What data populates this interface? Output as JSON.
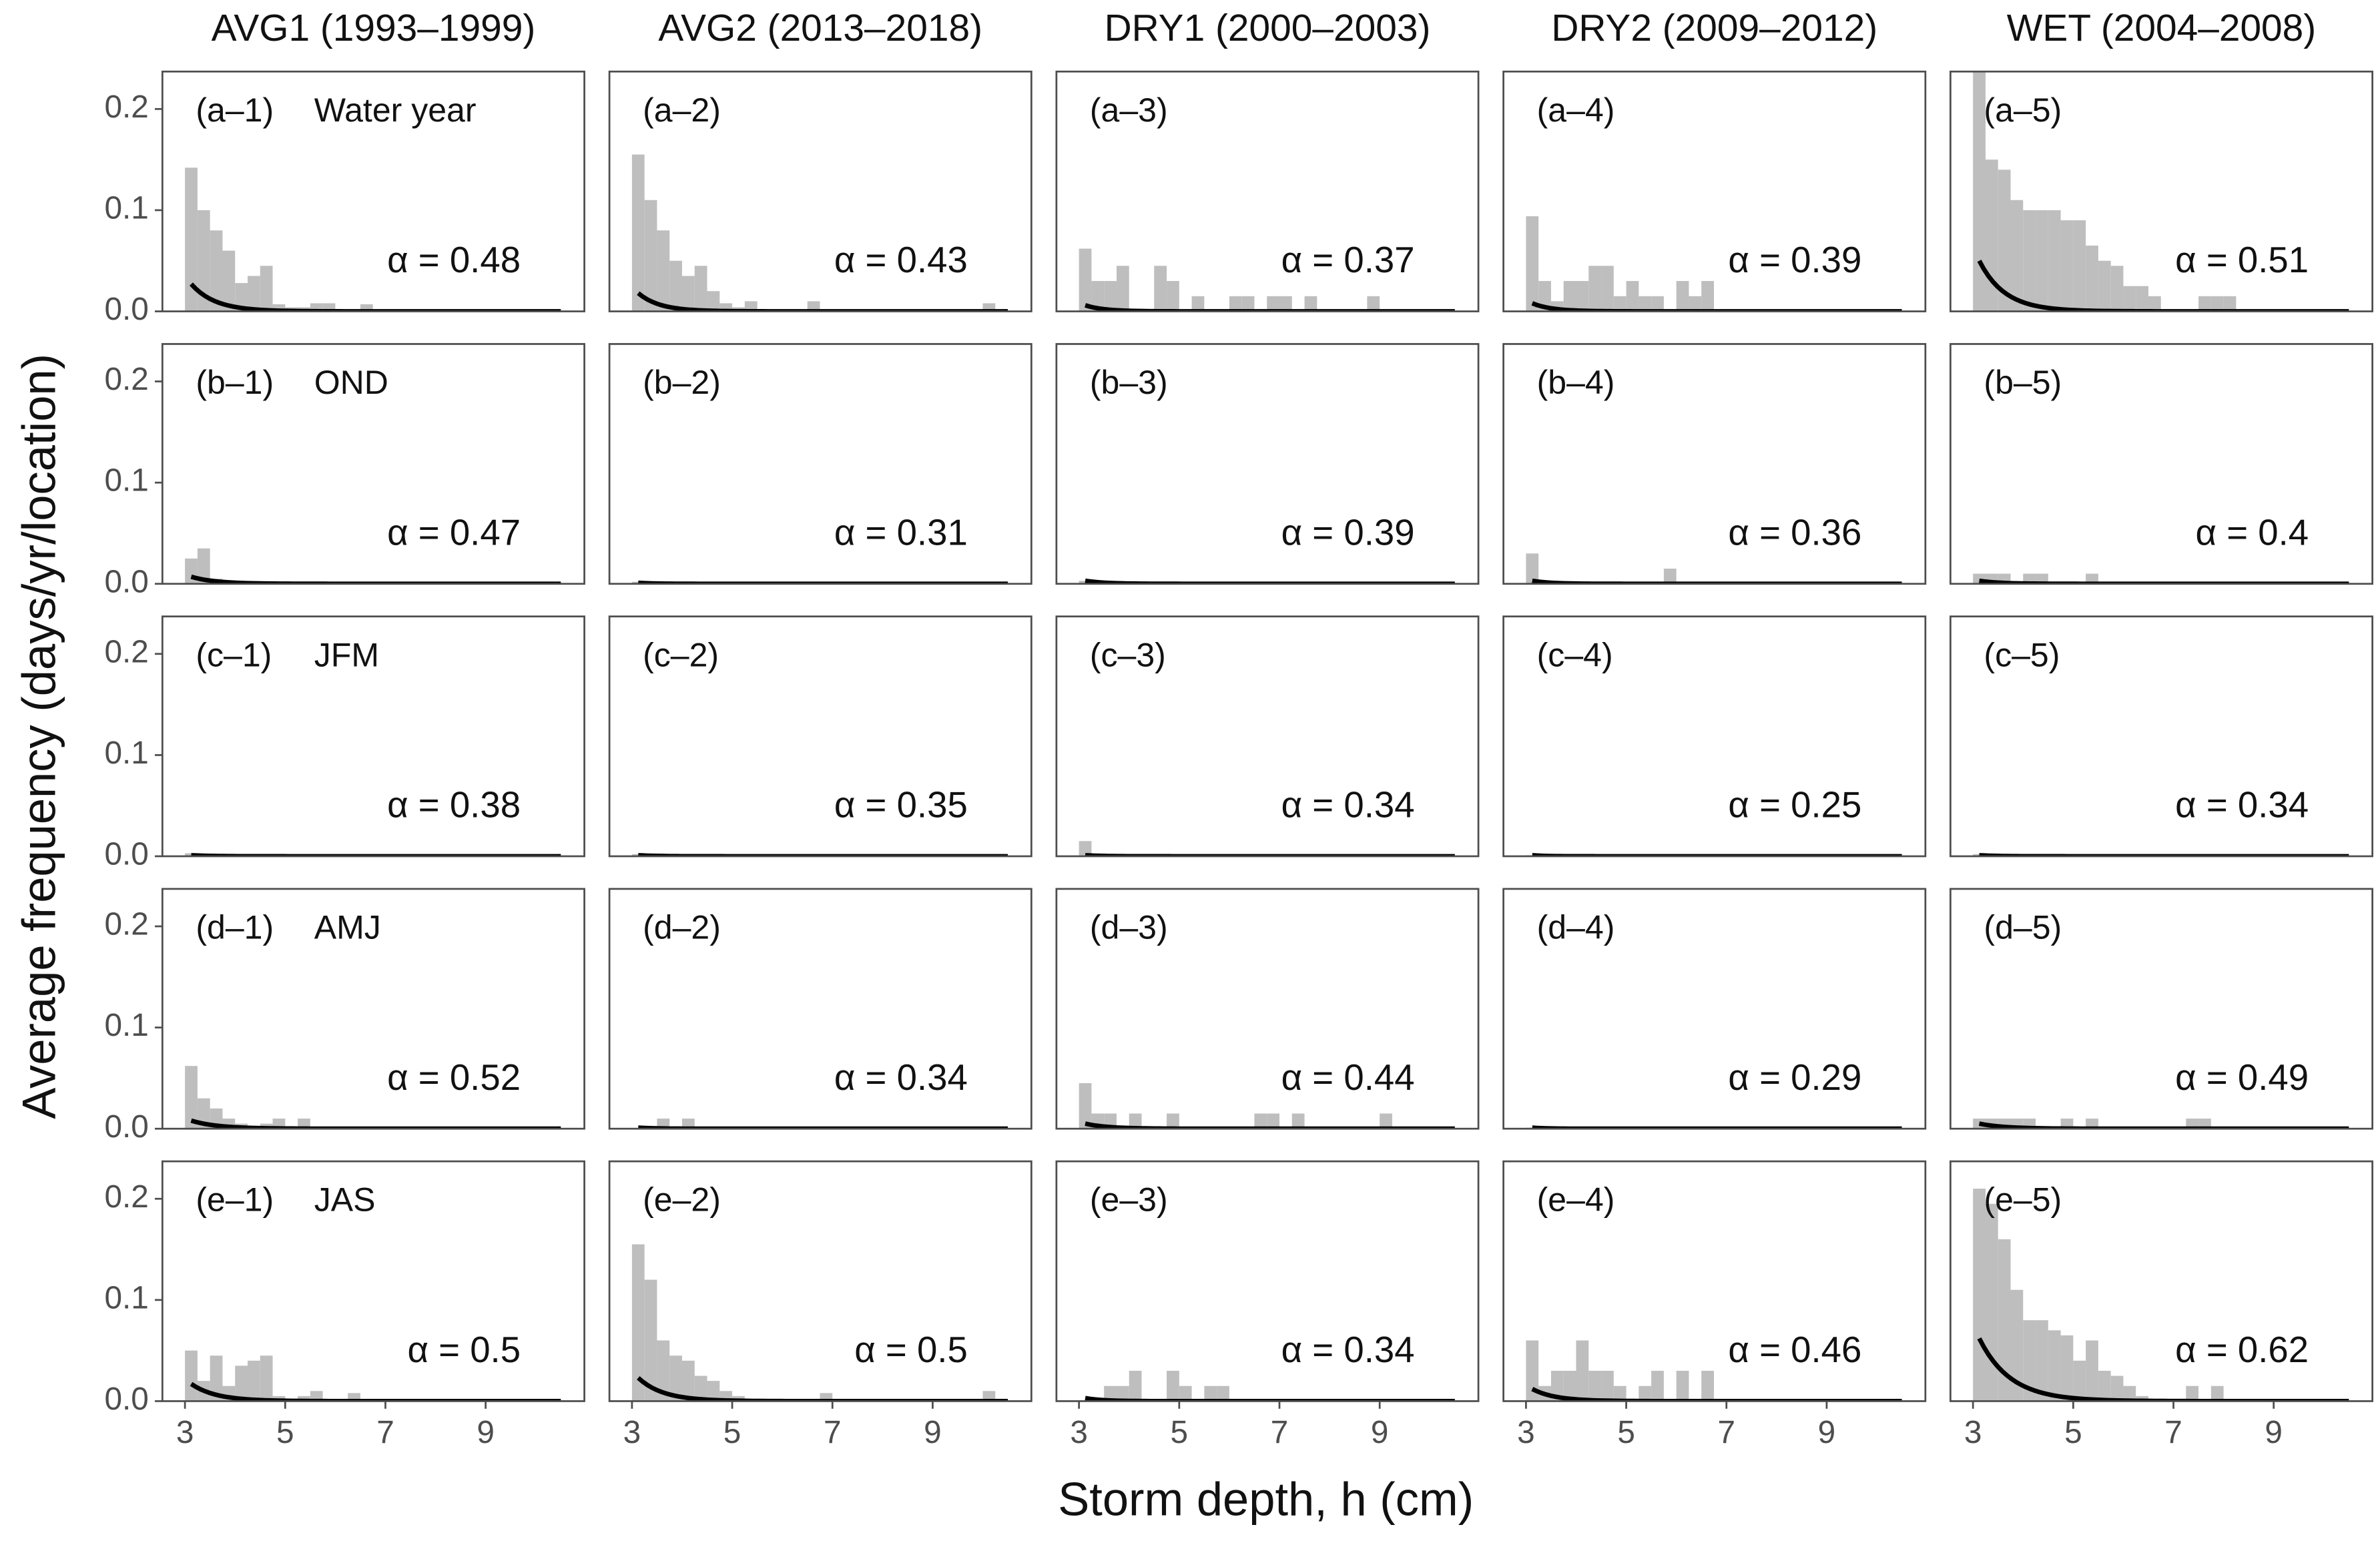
{
  "chart_data": {
    "type": "histogram",
    "x_label": "Storm depth, h (cm)",
    "y_label": "Average frequency (days/yr/location)",
    "column_titles": [
      "AVG1 (1993–1999)",
      "AVG2 (2013–2018)",
      "DRY1 (2000–2003)",
      "DRY2 (2009–2012)",
      "WET (2004–2008)"
    ],
    "row_titles": [
      "Water year",
      "OND",
      "JFM",
      "AMJ",
      "JAS"
    ],
    "color": "#bebebe",
    "curve_color": "#000000",
    "xlim": [
      2.55,
      10.97
    ],
    "ylim": [
      0,
      0.237
    ],
    "xticks": [
      3,
      5,
      7,
      9
    ],
    "yticks": [
      {
        "value": 0,
        "label": "0.0"
      },
      {
        "value": 0.1,
        "label": "0.1"
      },
      {
        "value": 0.2,
        "label": "0.2"
      }
    ],
    "bins": [
      3,
      3.25,
      3.5,
      3.75,
      4,
      4.25,
      4.5,
      4.75,
      5,
      5.25,
      5.5,
      5.75,
      6,
      6.25,
      6.5,
      6.75,
      7,
      7.25,
      7.5,
      7.75,
      8,
      8.25,
      8.5,
      8.75,
      9,
      9.25,
      9.5,
      9.75,
      10,
      10.25,
      10.5
    ],
    "panels": [
      {
        "label": "(a–1)",
        "alpha": 0.48,
        "alpha_label": "α = 0.48",
        "curve_start": 0.027,
        "values": [
          0.142,
          0.1,
          0.08,
          0.06,
          0.028,
          0.035,
          0.045,
          0.007,
          0.004,
          0.004,
          0.008,
          0.008,
          0,
          0,
          0.007,
          0,
          0,
          0,
          0,
          0,
          0,
          0,
          0,
          0,
          0,
          0,
          0,
          0,
          0,
          0
        ]
      },
      {
        "label": "(a–2)",
        "alpha": 0.43,
        "alpha_label": "α = 0.43",
        "curve_start": 0.018,
        "values": [
          0.155,
          0.11,
          0.08,
          0.05,
          0.035,
          0.045,
          0.02,
          0.008,
          0.004,
          0.01,
          0,
          0,
          0,
          0,
          0.01,
          0,
          0,
          0,
          0,
          0,
          0,
          0,
          0,
          0,
          0,
          0,
          0,
          0,
          0.008,
          0
        ]
      },
      {
        "label": "(a–3)",
        "alpha": 0.37,
        "alpha_label": "α = 0.37",
        "curve_start": 0.006,
        "values": [
          0.062,
          0.03,
          0.03,
          0.045,
          0,
          0,
          0.045,
          0.03,
          0,
          0.015,
          0,
          0,
          0.015,
          0.015,
          0,
          0.015,
          0.015,
          0,
          0.015,
          0,
          0,
          0,
          0,
          0.015,
          0,
          0,
          0,
          0,
          0,
          0
        ]
      },
      {
        "label": "(a–4)",
        "alpha": 0.39,
        "alpha_label": "α = 0.39",
        "curve_start": 0.008,
        "values": [
          0.094,
          0.03,
          0.01,
          0.03,
          0.03,
          0.045,
          0.045,
          0.015,
          0.03,
          0.015,
          0.015,
          0,
          0.03,
          0.015,
          0.03,
          0,
          0,
          0,
          0,
          0,
          0,
          0,
          0,
          0,
          0,
          0,
          0,
          0,
          0,
          0
        ]
      },
      {
        "label": "(a–5)",
        "alpha": 0.51,
        "alpha_label": "α = 0.51",
        "curve_start": 0.05,
        "values": [
          0.24,
          0.15,
          0.14,
          0.11,
          0.1,
          0.1,
          0.1,
          0.09,
          0.09,
          0.065,
          0.05,
          0.045,
          0.025,
          0.025,
          0.015,
          0,
          0,
          0,
          0.015,
          0.015,
          0.015,
          0,
          0,
          0,
          0,
          0,
          0,
          0,
          0,
          0
        ]
      },
      {
        "label": "(b–1)",
        "alpha": 0.47,
        "alpha_label": "α = 0.47",
        "curve_start": 0.007,
        "values": [
          0.025,
          0.035,
          0.005,
          0,
          0,
          0,
          0,
          0,
          0,
          0,
          0,
          0,
          0,
          0,
          0,
          0,
          0,
          0,
          0,
          0,
          0,
          0,
          0,
          0,
          0,
          0,
          0,
          0,
          0,
          0
        ]
      },
      {
        "label": "(b–2)",
        "alpha": 0.31,
        "alpha_label": "α = 0.31",
        "curve_start": 0.001,
        "values": [
          0.002,
          0,
          0,
          0,
          0,
          0,
          0,
          0,
          0,
          0,
          0,
          0,
          0,
          0,
          0,
          0,
          0,
          0,
          0,
          0,
          0,
          0,
          0,
          0,
          0,
          0,
          0,
          0,
          0,
          0
        ]
      },
      {
        "label": "(b–3)",
        "alpha": 0.39,
        "alpha_label": "α = 0.39",
        "curve_start": 0.003,
        "values": [
          0.003,
          0,
          0,
          0,
          0,
          0,
          0,
          0,
          0,
          0,
          0,
          0,
          0,
          0,
          0,
          0,
          0,
          0,
          0,
          0,
          0,
          0,
          0,
          0,
          0,
          0,
          0,
          0,
          0,
          0
        ]
      },
      {
        "label": "(b–4)",
        "alpha": 0.36,
        "alpha_label": "α = 0.36",
        "curve_start": 0.003,
        "values": [
          0.03,
          0,
          0,
          0,
          0,
          0,
          0,
          0,
          0,
          0,
          0,
          0.015,
          0,
          0,
          0,
          0,
          0,
          0,
          0,
          0,
          0,
          0,
          0,
          0,
          0,
          0,
          0,
          0,
          0,
          0
        ]
      },
      {
        "label": "(b–5)",
        "alpha": 0.4,
        "alpha_label": "α = 0.4",
        "curve_start": 0.003,
        "values": [
          0.01,
          0.01,
          0.01,
          0,
          0.01,
          0.01,
          0,
          0,
          0,
          0.01,
          0,
          0,
          0,
          0,
          0,
          0,
          0,
          0,
          0,
          0,
          0,
          0,
          0,
          0,
          0,
          0,
          0,
          0,
          0,
          0
        ]
      },
      {
        "label": "(c–1)",
        "alpha": 0.38,
        "alpha_label": "α = 0.38",
        "curve_start": 0.001,
        "values": [
          0.003,
          0,
          0,
          0,
          0,
          0,
          0,
          0,
          0,
          0,
          0,
          0,
          0,
          0,
          0,
          0,
          0,
          0,
          0,
          0,
          0,
          0,
          0,
          0,
          0,
          0,
          0,
          0,
          0,
          0
        ]
      },
      {
        "label": "(c–2)",
        "alpha": 0.35,
        "alpha_label": "α = 0.35",
        "curve_start": 0.001,
        "values": [
          0.002,
          0,
          0,
          0,
          0,
          0,
          0,
          0,
          0,
          0,
          0,
          0,
          0,
          0,
          0,
          0,
          0,
          0,
          0,
          0,
          0,
          0,
          0,
          0,
          0,
          0,
          0,
          0,
          0,
          0
        ]
      },
      {
        "label": "(c–3)",
        "alpha": 0.34,
        "alpha_label": "α = 0.34",
        "curve_start": 0.001,
        "values": [
          0.015,
          0,
          0,
          0,
          0,
          0,
          0,
          0,
          0,
          0,
          0,
          0,
          0,
          0,
          0,
          0,
          0,
          0,
          0,
          0,
          0,
          0,
          0,
          0,
          0,
          0,
          0,
          0,
          0,
          0
        ]
      },
      {
        "label": "(c–4)",
        "alpha": 0.25,
        "alpha_label": "α = 0.25",
        "curve_start": 0.001,
        "values": [
          0.001,
          0,
          0,
          0,
          0,
          0,
          0,
          0,
          0,
          0,
          0,
          0,
          0,
          0,
          0,
          0,
          0,
          0,
          0,
          0,
          0,
          0,
          0,
          0,
          0,
          0,
          0,
          0,
          0,
          0
        ]
      },
      {
        "label": "(c–5)",
        "alpha": 0.34,
        "alpha_label": "α = 0.34",
        "curve_start": 0.001,
        "values": [
          0.002,
          0,
          0,
          0,
          0,
          0,
          0,
          0,
          0,
          0,
          0,
          0,
          0,
          0,
          0,
          0,
          0,
          0,
          0,
          0,
          0,
          0,
          0,
          0,
          0,
          0,
          0,
          0,
          0,
          0
        ]
      },
      {
        "label": "(d–1)",
        "alpha": 0.52,
        "alpha_label": "α = 0.52",
        "curve_start": 0.008,
        "values": [
          0.062,
          0.03,
          0.02,
          0.01,
          0.005,
          0,
          0.005,
          0.01,
          0,
          0.01,
          0,
          0,
          0,
          0,
          0,
          0,
          0,
          0,
          0,
          0,
          0,
          0,
          0,
          0,
          0,
          0,
          0,
          0,
          0,
          0
        ]
      },
      {
        "label": "(d–2)",
        "alpha": 0.34,
        "alpha_label": "α = 0.34",
        "curve_start": 0.001,
        "values": [
          0,
          0,
          0.01,
          0,
          0.01,
          0,
          0,
          0,
          0,
          0,
          0,
          0,
          0,
          0,
          0,
          0,
          0,
          0,
          0,
          0,
          0,
          0,
          0,
          0,
          0,
          0,
          0,
          0,
          0,
          0
        ]
      },
      {
        "label": "(d–3)",
        "alpha": 0.44,
        "alpha_label": "α = 0.44",
        "curve_start": 0.005,
        "values": [
          0.045,
          0.015,
          0.015,
          0,
          0.015,
          0,
          0,
          0.015,
          0,
          0,
          0,
          0,
          0,
          0,
          0.015,
          0.015,
          0,
          0.015,
          0,
          0,
          0,
          0,
          0,
          0,
          0.015,
          0,
          0,
          0,
          0,
          0
        ]
      },
      {
        "label": "(d–4)",
        "alpha": 0.29,
        "alpha_label": "α = 0.29",
        "curve_start": 0.001,
        "values": [
          0.001,
          0,
          0,
          0,
          0,
          0,
          0,
          0,
          0,
          0,
          0,
          0,
          0,
          0,
          0,
          0,
          0,
          0,
          0,
          0,
          0,
          0,
          0,
          0,
          0,
          0,
          0,
          0,
          0,
          0
        ]
      },
      {
        "label": "(d–5)",
        "alpha": 0.49,
        "alpha_label": "α = 0.49",
        "curve_start": 0.005,
        "values": [
          0.01,
          0.01,
          0.01,
          0.01,
          0.01,
          0,
          0,
          0.01,
          0,
          0.01,
          0,
          0,
          0,
          0,
          0,
          0,
          0,
          0.01,
          0.01,
          0,
          0,
          0,
          0,
          0,
          0,
          0,
          0,
          0,
          0,
          0
        ]
      },
      {
        "label": "(e–1)",
        "alpha": 0.5,
        "alpha_label": "α = 0.5",
        "curve_start": 0.017,
        "values": [
          0.05,
          0.02,
          0.045,
          0.015,
          0.035,
          0.04,
          0.045,
          0.005,
          0,
          0.005,
          0.01,
          0,
          0,
          0.008,
          0,
          0,
          0,
          0,
          0,
          0,
          0,
          0,
          0,
          0,
          0,
          0,
          0,
          0,
          0,
          0
        ]
      },
      {
        "label": "(e–2)",
        "alpha": 0.5,
        "alpha_label": "α = 0.5",
        "curve_start": 0.023,
        "values": [
          0.155,
          0.12,
          0.06,
          0.045,
          0.04,
          0.025,
          0.02,
          0.01,
          0.005,
          0,
          0,
          0,
          0,
          0,
          0,
          0.008,
          0,
          0,
          0,
          0,
          0,
          0,
          0,
          0,
          0,
          0,
          0,
          0,
          0.01,
          0
        ]
      },
      {
        "label": "(e–3)",
        "alpha": 0.34,
        "alpha_label": "α = 0.34",
        "curve_start": 0.003,
        "values": [
          0,
          0,
          0.015,
          0.015,
          0.03,
          0,
          0,
          0.03,
          0.015,
          0,
          0.015,
          0.015,
          0,
          0,
          0,
          0,
          0,
          0,
          0,
          0,
          0,
          0,
          0,
          0,
          0,
          0,
          0,
          0,
          0,
          0
        ]
      },
      {
        "label": "(e–4)",
        "alpha": 0.46,
        "alpha_label": "α = 0.46",
        "curve_start": 0.012,
        "values": [
          0.06,
          0.015,
          0.03,
          0.03,
          0.06,
          0.03,
          0.03,
          0.015,
          0,
          0.015,
          0.03,
          0,
          0.03,
          0,
          0.03,
          0,
          0,
          0,
          0,
          0,
          0,
          0,
          0,
          0,
          0,
          0,
          0,
          0,
          0,
          0
        ]
      },
      {
        "label": "(e–5)",
        "alpha": 0.62,
        "alpha_label": "α = 0.62",
        "curve_start": 0.062,
        "values": [
          0.21,
          0.195,
          0.16,
          0.11,
          0.08,
          0.08,
          0.07,
          0.065,
          0.04,
          0.06,
          0.03,
          0.025,
          0.015,
          0.005,
          0,
          0,
          0,
          0.015,
          0,
          0.015,
          0,
          0,
          0,
          0,
          0,
          0,
          0,
          0,
          0,
          0
        ]
      }
    ]
  }
}
